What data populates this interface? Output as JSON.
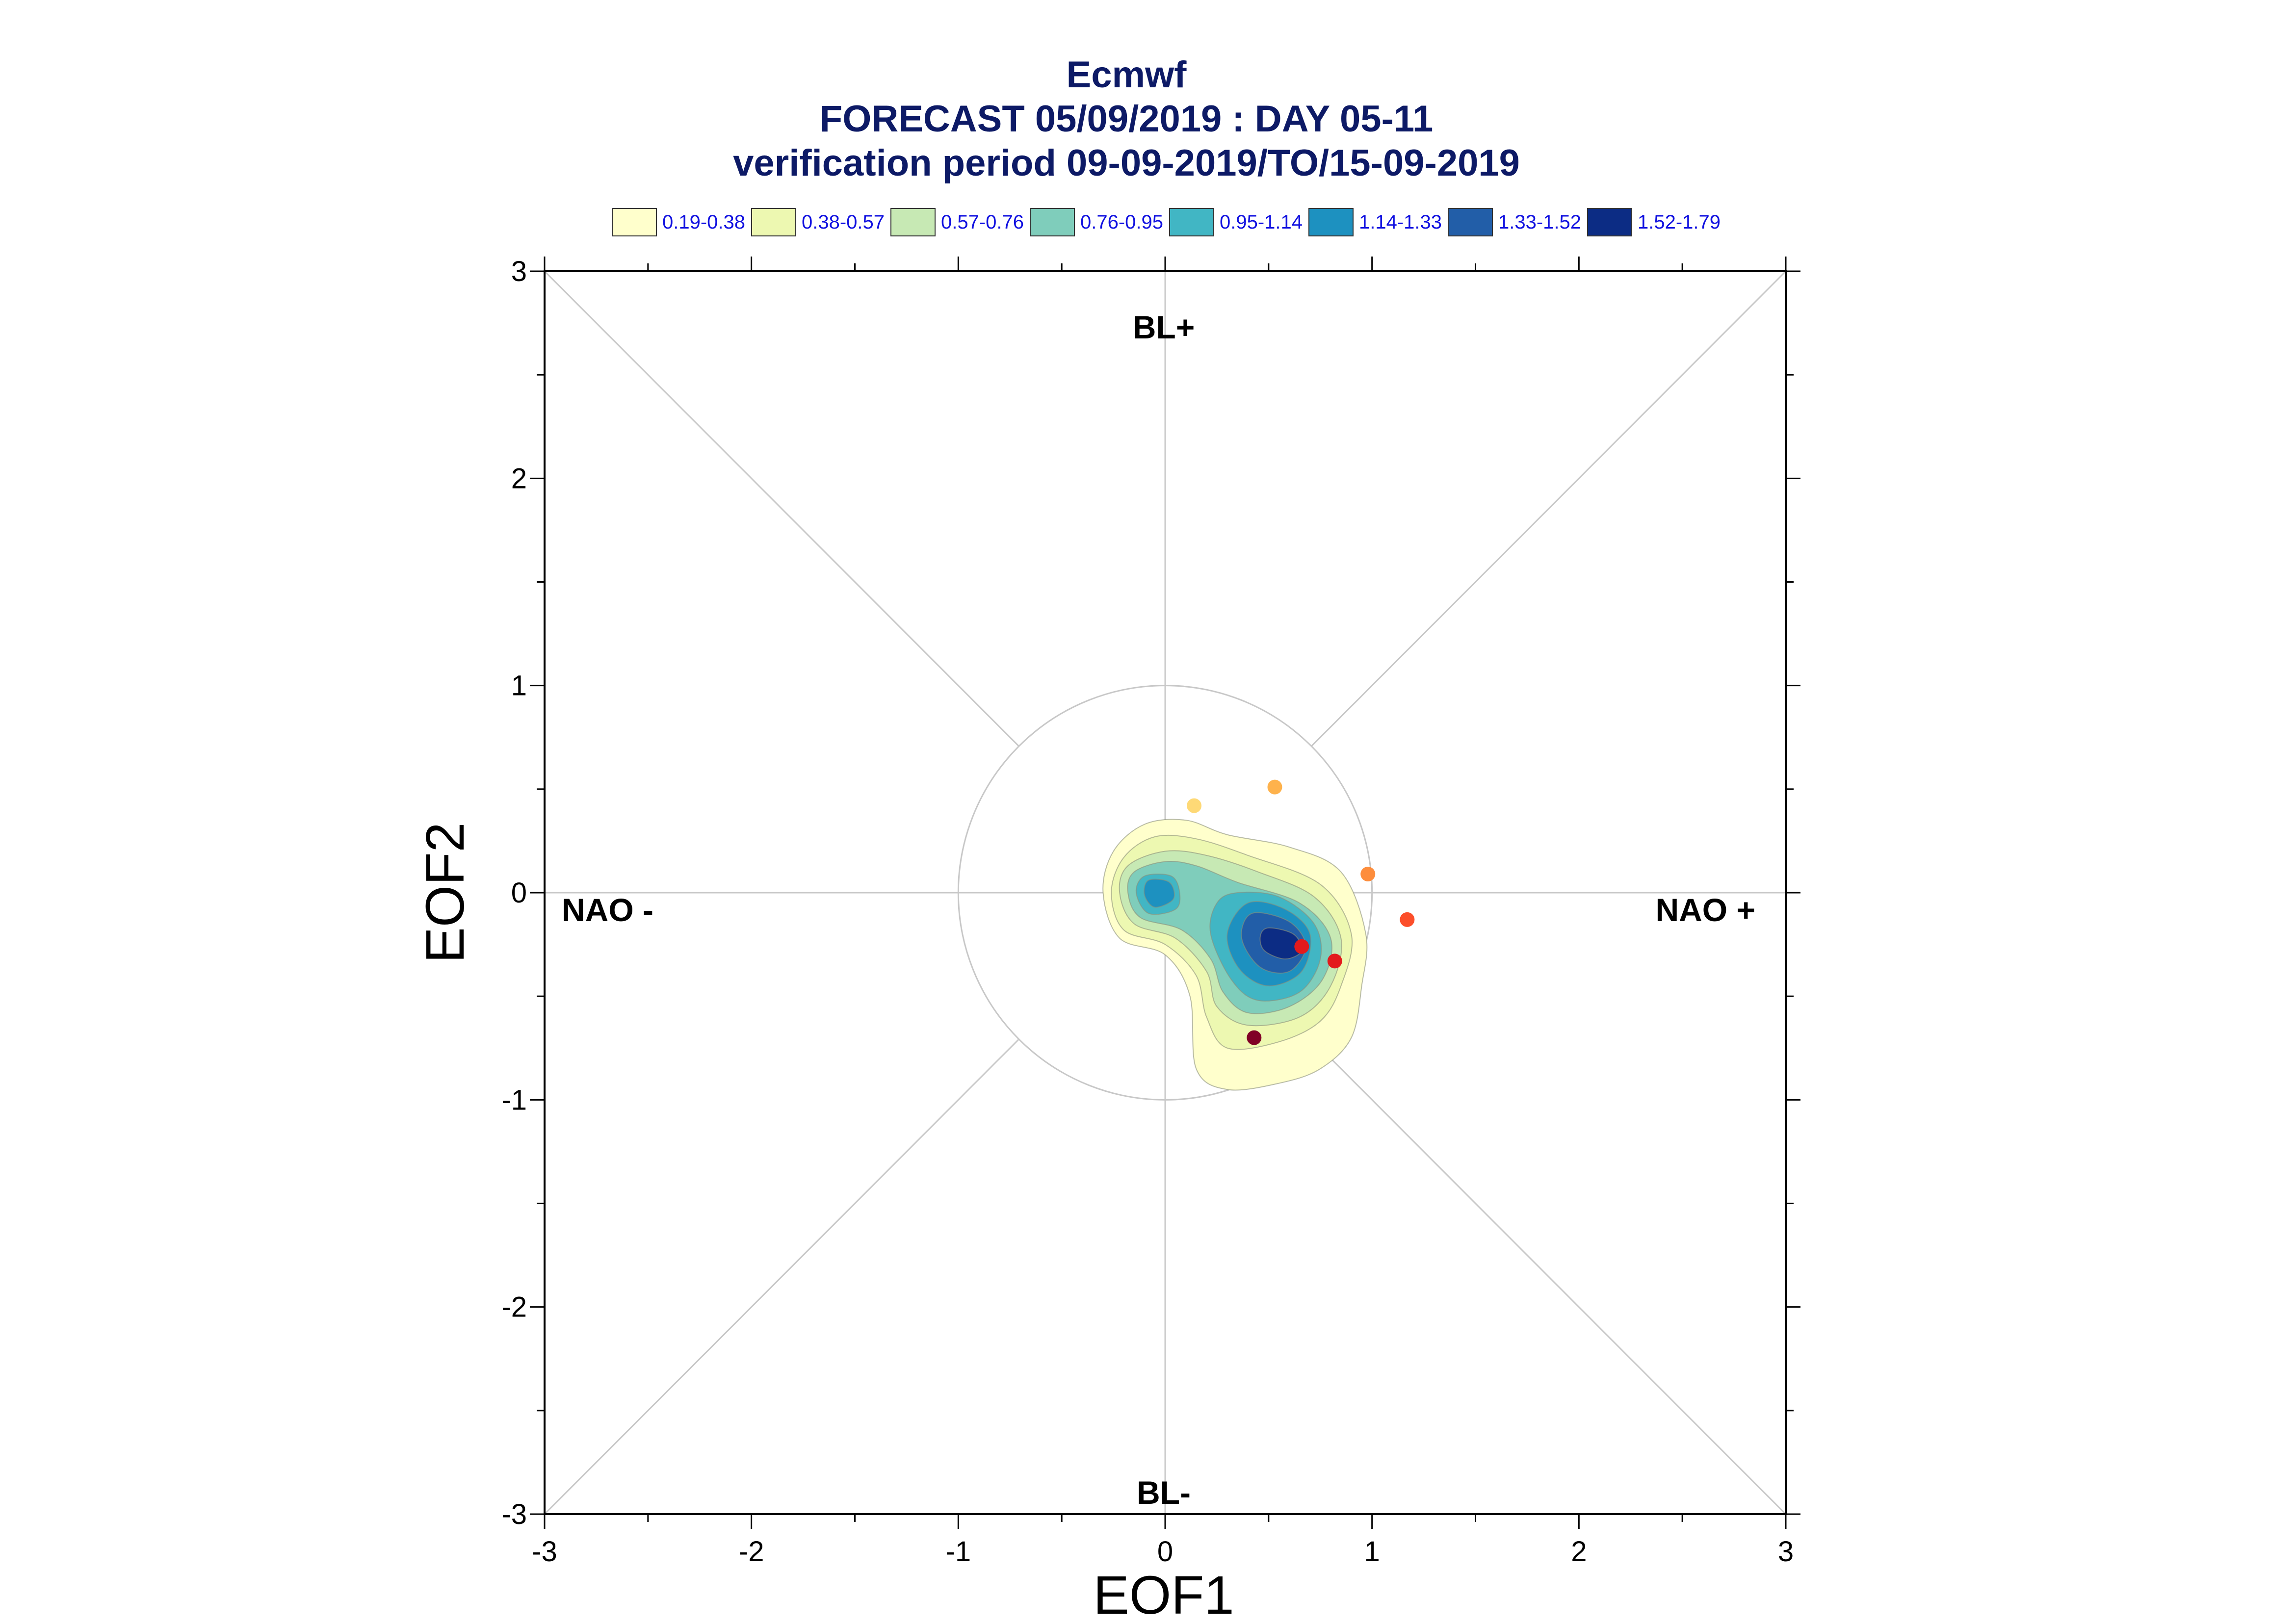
{
  "chart_data": {
    "type": "scatter",
    "title_lines": [
      "Ecmwf",
      "FORECAST 05/09/2019 : DAY 05-11",
      "verification period 09-09-2019/TO/15-09-2019"
    ],
    "xlabel": "EOF1",
    "ylabel": "EOF2",
    "xlim": [
      -3,
      3
    ],
    "ylim": [
      -3,
      3
    ],
    "x_ticks": [
      "-3",
      "-2",
      "-1",
      "0",
      "1",
      "2",
      "3"
    ],
    "y_ticks": [
      "-3",
      "-2",
      "-1",
      "0",
      "1",
      "2",
      "3"
    ],
    "regime_labels": {
      "top": "BL+",
      "bottom": "BL-",
      "left": "NAO -",
      "right": "NAO +"
    },
    "reference_circle_radius": 1,
    "legend": [
      {
        "label": "0.19-0.38",
        "color": "#ffffcc"
      },
      {
        "label": "0.38-0.57",
        "color": "#edf8b1"
      },
      {
        "label": "0.57-0.76",
        "color": "#c7e9b4"
      },
      {
        "label": "0.76-0.95",
        "color": "#7fcdbb"
      },
      {
        "label": "0.95-1.14",
        "color": "#41b6c4"
      },
      {
        "label": "1.14-1.33",
        "color": "#1d91c0"
      },
      {
        "label": "1.33-1.52",
        "color": "#225ea8"
      },
      {
        "label": "1.52-1.79",
        "color": "#0c2c84"
      }
    ],
    "density_levels": [
      {
        "level": "0.19-0.38",
        "color": "#ffffcc",
        "outline": [
          [
            -0.25,
            0.2
          ],
          [
            -0.1,
            0.33
          ],
          [
            0.1,
            0.35
          ],
          [
            0.3,
            0.28
          ],
          [
            0.6,
            0.22
          ],
          [
            0.85,
            0.1
          ],
          [
            0.97,
            -0.2
          ],
          [
            0.95,
            -0.45
          ],
          [
            0.9,
            -0.7
          ],
          [
            0.75,
            -0.85
          ],
          [
            0.55,
            -0.92
          ],
          [
            0.3,
            -0.95
          ],
          [
            0.15,
            -0.85
          ],
          [
            0.12,
            -0.5
          ],
          [
            0.0,
            -0.3
          ],
          [
            -0.22,
            -0.22
          ],
          [
            -0.3,
            0.0
          ]
        ]
      },
      {
        "level": "0.38-0.57",
        "color": "#edf8b1",
        "outline": [
          [
            -0.2,
            0.17
          ],
          [
            -0.05,
            0.27
          ],
          [
            0.15,
            0.26
          ],
          [
            0.4,
            0.18
          ],
          [
            0.75,
            0.04
          ],
          [
            0.9,
            -0.2
          ],
          [
            0.85,
            -0.45
          ],
          [
            0.75,
            -0.62
          ],
          [
            0.55,
            -0.72
          ],
          [
            0.3,
            -0.75
          ],
          [
            0.2,
            -0.6
          ],
          [
            0.15,
            -0.4
          ],
          [
            0.0,
            -0.25
          ],
          [
            -0.2,
            -0.18
          ],
          [
            -0.26,
            0.0
          ]
        ]
      },
      {
        "level": "0.57-0.76",
        "color": "#c7e9b4",
        "outline": [
          [
            -0.18,
            0.13
          ],
          [
            0.0,
            0.2
          ],
          [
            0.2,
            0.18
          ],
          [
            0.45,
            0.1
          ],
          [
            0.72,
            -0.02
          ],
          [
            0.85,
            -0.22
          ],
          [
            0.8,
            -0.45
          ],
          [
            0.65,
            -0.6
          ],
          [
            0.4,
            -0.64
          ],
          [
            0.25,
            -0.55
          ],
          [
            0.2,
            -0.38
          ],
          [
            0.05,
            -0.22
          ],
          [
            -0.15,
            -0.15
          ],
          [
            -0.22,
            0.0
          ]
        ]
      },
      {
        "level": "0.76-0.95",
        "color": "#7fcdbb",
        "outline": [
          [
            -0.15,
            0.1
          ],
          [
            0.0,
            0.15
          ],
          [
            0.15,
            0.13
          ],
          [
            0.35,
            0.05
          ],
          [
            0.65,
            -0.05
          ],
          [
            0.8,
            -0.22
          ],
          [
            0.76,
            -0.42
          ],
          [
            0.6,
            -0.55
          ],
          [
            0.4,
            -0.58
          ],
          [
            0.28,
            -0.48
          ],
          [
            0.22,
            -0.32
          ],
          [
            0.08,
            -0.18
          ],
          [
            -0.12,
            -0.12
          ],
          [
            -0.18,
            0.0
          ]
        ]
      },
      {
        "level": "0.95-1.14",
        "color": "#41b6c4",
        "outline": [
          [
            -0.1,
            0.08
          ],
          [
            0.03,
            0.08
          ],
          [
            0.07,
            0.0
          ],
          [
            0.05,
            -0.08
          ],
          [
            -0.08,
            -0.1
          ],
          [
            -0.14,
            0.0
          ]
        ]
      },
      {
        "level": "0.95-1.14",
        "color": "#41b6c4",
        "outline": [
          [
            0.35,
            0.0
          ],
          [
            0.55,
            -0.02
          ],
          [
            0.72,
            -0.15
          ],
          [
            0.75,
            -0.32
          ],
          [
            0.65,
            -0.48
          ],
          [
            0.45,
            -0.52
          ],
          [
            0.32,
            -0.42
          ],
          [
            0.22,
            -0.2
          ],
          [
            0.25,
            -0.05
          ]
        ]
      },
      {
        "level": "1.14-1.33",
        "color": "#1d91c0",
        "outline": [
          [
            -0.08,
            0.06
          ],
          [
            0.02,
            0.05
          ],
          [
            0.04,
            -0.03
          ],
          [
            -0.05,
            -0.07
          ],
          [
            -0.1,
            -0.01
          ]
        ]
      },
      {
        "level": "1.14-1.33",
        "color": "#1d91c0",
        "outline": [
          [
            0.4,
            -0.05
          ],
          [
            0.58,
            -0.08
          ],
          [
            0.7,
            -0.2
          ],
          [
            0.66,
            -0.38
          ],
          [
            0.5,
            -0.45
          ],
          [
            0.36,
            -0.37
          ],
          [
            0.3,
            -0.2
          ]
        ]
      },
      {
        "level": "1.33-1.52",
        "color": "#225ea8",
        "outline": [
          [
            0.42,
            -0.1
          ],
          [
            0.6,
            -0.14
          ],
          [
            0.68,
            -0.26
          ],
          [
            0.6,
            -0.38
          ],
          [
            0.46,
            -0.36
          ],
          [
            0.37,
            -0.22
          ]
        ]
      },
      {
        "level": "1.52-1.79",
        "color": "#0c2c84",
        "outline": [
          [
            0.5,
            -0.17
          ],
          [
            0.62,
            -0.2
          ],
          [
            0.66,
            -0.28
          ],
          [
            0.58,
            -0.32
          ],
          [
            0.48,
            -0.28
          ],
          [
            0.46,
            -0.21
          ]
        ]
      }
    ],
    "points": [
      {
        "x": 0.14,
        "y": 0.42,
        "color": "#fed976"
      },
      {
        "x": 0.53,
        "y": 0.51,
        "color": "#feb24c"
      },
      {
        "x": 0.98,
        "y": 0.09,
        "color": "#fd8d3c"
      },
      {
        "x": 1.17,
        "y": -0.13,
        "color": "#fc4e2a"
      },
      {
        "x": 0.82,
        "y": -0.33,
        "color": "#e31a1c"
      },
      {
        "x": 0.66,
        "y": -0.26,
        "color": "#e31a1c"
      },
      {
        "x": 0.43,
        "y": -0.7,
        "color": "#800026"
      }
    ]
  }
}
